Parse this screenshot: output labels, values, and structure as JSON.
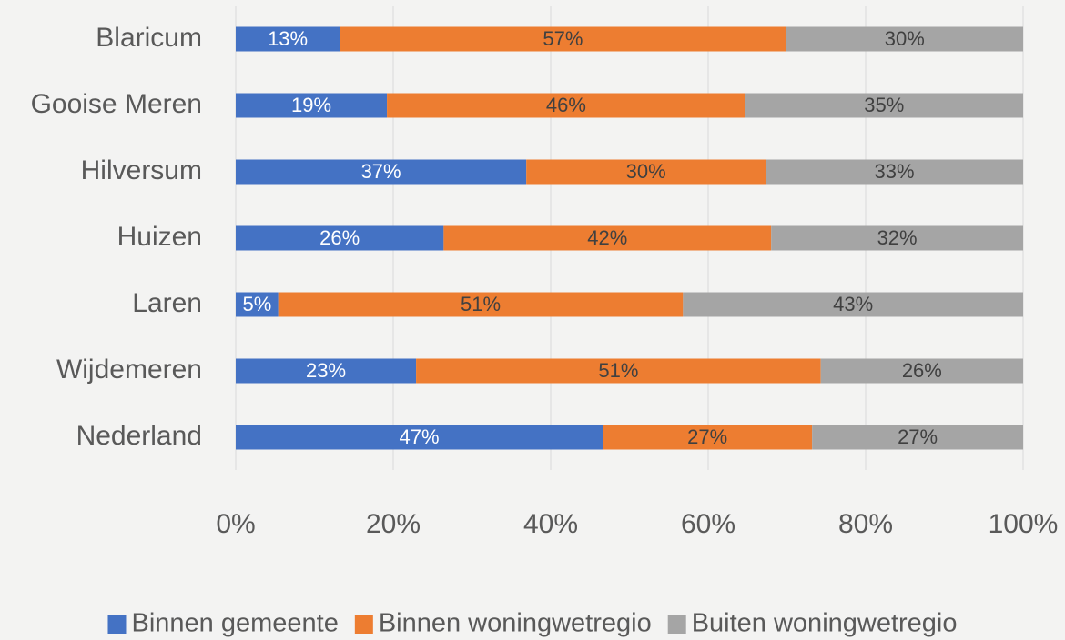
{
  "chart_data": {
    "type": "stacked-bar-horizontal",
    "categories": [
      "Blaricum",
      "Gooise Meren",
      "Hilversum",
      "Huizen",
      "Laren",
      "Wijdemeren",
      "Nederland"
    ],
    "series": [
      {
        "name": "Binnen gemeente",
        "color": "#4472c4",
        "label_color": "#ffffff",
        "values": [
          13.2,
          19.2,
          36.9,
          26.4,
          5.4,
          22.9,
          46.6
        ],
        "value_labels": [
          "13%",
          "19%",
          "37%",
          "26%",
          "5%",
          "23%",
          "47%"
        ]
      },
      {
        "name": "Binnen woningwetregio",
        "color": "#ed7d31",
        "label_color": "#404040",
        "values": [
          56.7,
          45.5,
          30.4,
          41.6,
          51.4,
          51.4,
          26.6
        ],
        "value_labels": [
          "57%",
          "46%",
          "30%",
          "42%",
          "51%",
          "51%",
          "27%"
        ]
      },
      {
        "name": "Buiten woningwetregio",
        "color": "#a5a5a5",
        "label_color": "#404040",
        "values": [
          30.1,
          35.3,
          32.7,
          32.0,
          43.2,
          25.7,
          26.8
        ],
        "value_labels": [
          "30%",
          "35%",
          "33%",
          "32%",
          "43%",
          "26%",
          "27%"
        ]
      }
    ],
    "xlim": [
      0,
      100
    ],
    "xticks": [
      {
        "value": 0,
        "label": "0%"
      },
      {
        "value": 20,
        "label": "20%"
      },
      {
        "value": 40,
        "label": "40%"
      },
      {
        "value": 60,
        "label": "60%"
      },
      {
        "value": 80,
        "label": "80%"
      },
      {
        "value": 100,
        "label": "100%"
      }
    ],
    "grid": true,
    "legend": "bottom"
  }
}
